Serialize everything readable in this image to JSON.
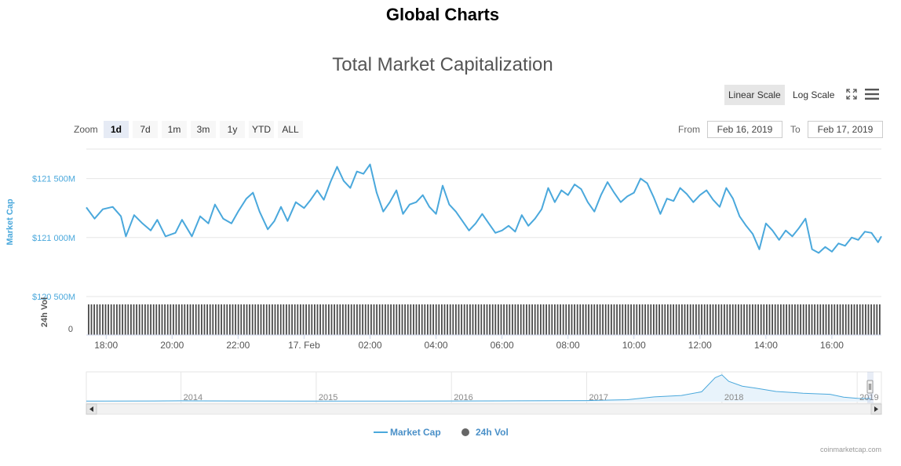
{
  "header": {
    "page_title": "Global Charts",
    "chart_title": "Total Market Capitalization"
  },
  "toolbar": {
    "linear_scale": "Linear Scale",
    "log_scale": "Log Scale",
    "fullscreen_icon": "fullscreen-icon",
    "menu_icon": "hamburger-menu-icon"
  },
  "zoom": {
    "label": "Zoom",
    "buttons": [
      "1d",
      "7d",
      "1m",
      "3m",
      "1y",
      "YTD",
      "ALL"
    ],
    "active": "1d"
  },
  "range": {
    "from_label": "From",
    "from_value": "Feb 16, 2019",
    "to_label": "To",
    "to_value": "Feb 17, 2019"
  },
  "credit": "coinmarketcap.com",
  "chart_data": {
    "type": "line",
    "y_axis": {
      "label": "Market Cap",
      "ticks": [
        {
          "value": 121500,
          "label": "$121 500M"
        },
        {
          "value": 121000,
          "label": "$121 000M"
        },
        {
          "value": 120500,
          "label": "$120 500M"
        }
      ],
      "range_millions": [
        120500,
        121750
      ]
    },
    "vol_axis": {
      "label": "24h Vol",
      "ticks": [
        {
          "value": 0,
          "label": "0"
        }
      ]
    },
    "x_axis": {
      "ticks": [
        "18:00",
        "20:00",
        "22:00",
        "17. Feb",
        "02:00",
        "04:00",
        "06:00",
        "08:00",
        "10:00",
        "12:00",
        "14:00",
        "16:00"
      ],
      "range_hours": [
        17.4,
        41.5
      ],
      "first_tick_hour": 18
    },
    "series": [
      {
        "name": "Market Cap",
        "color": "#4aa8dc",
        "unit": "millions USD",
        "points": [
          [
            17.4,
            121255
          ],
          [
            17.65,
            121160
          ],
          [
            17.9,
            121240
          ],
          [
            18.2,
            121260
          ],
          [
            18.45,
            121180
          ],
          [
            18.6,
            121010
          ],
          [
            18.85,
            121190
          ],
          [
            19.1,
            121120
          ],
          [
            19.35,
            121060
          ],
          [
            19.55,
            121150
          ],
          [
            19.8,
            121010
          ],
          [
            20.1,
            121040
          ],
          [
            20.3,
            121150
          ],
          [
            20.6,
            121010
          ],
          [
            20.85,
            121180
          ],
          [
            21.1,
            121120
          ],
          [
            21.3,
            121280
          ],
          [
            21.55,
            121160
          ],
          [
            21.8,
            121120
          ],
          [
            22.0,
            121220
          ],
          [
            22.25,
            121330
          ],
          [
            22.45,
            121380
          ],
          [
            22.65,
            121220
          ],
          [
            22.9,
            121070
          ],
          [
            23.1,
            121140
          ],
          [
            23.3,
            121260
          ],
          [
            23.5,
            121140
          ],
          [
            23.75,
            121300
          ],
          [
            24.0,
            121250
          ],
          [
            24.2,
            121320
          ],
          [
            24.4,
            121400
          ],
          [
            24.6,
            121320
          ],
          [
            24.8,
            121470
          ],
          [
            25.0,
            121600
          ],
          [
            25.2,
            121480
          ],
          [
            25.4,
            121420
          ],
          [
            25.6,
            121560
          ],
          [
            25.8,
            121540
          ],
          [
            26.0,
            121620
          ],
          [
            26.2,
            121380
          ],
          [
            26.4,
            121220
          ],
          [
            26.6,
            121300
          ],
          [
            26.8,
            121400
          ],
          [
            27.0,
            121200
          ],
          [
            27.2,
            121280
          ],
          [
            27.4,
            121300
          ],
          [
            27.6,
            121360
          ],
          [
            27.8,
            121260
          ],
          [
            28.0,
            121200
          ],
          [
            28.2,
            121440
          ],
          [
            28.4,
            121280
          ],
          [
            28.6,
            121220
          ],
          [
            28.8,
            121140
          ],
          [
            29.0,
            121060
          ],
          [
            29.2,
            121120
          ],
          [
            29.4,
            121200
          ],
          [
            29.6,
            121120
          ],
          [
            29.8,
            121040
          ],
          [
            30.0,
            121060
          ],
          [
            30.2,
            121100
          ],
          [
            30.4,
            121050
          ],
          [
            30.6,
            121190
          ],
          [
            30.8,
            121100
          ],
          [
            31.0,
            121160
          ],
          [
            31.2,
            121240
          ],
          [
            31.4,
            121420
          ],
          [
            31.6,
            121300
          ],
          [
            31.8,
            121400
          ],
          [
            32.0,
            121360
          ],
          [
            32.2,
            121450
          ],
          [
            32.4,
            121410
          ],
          [
            32.6,
            121300
          ],
          [
            32.8,
            121220
          ],
          [
            33.0,
            121360
          ],
          [
            33.2,
            121470
          ],
          [
            33.4,
            121380
          ],
          [
            33.6,
            121300
          ],
          [
            33.8,
            121350
          ],
          [
            34.0,
            121380
          ],
          [
            34.2,
            121500
          ],
          [
            34.4,
            121460
          ],
          [
            34.6,
            121340
          ],
          [
            34.8,
            121200
          ],
          [
            35.0,
            121330
          ],
          [
            35.2,
            121310
          ],
          [
            35.4,
            121420
          ],
          [
            35.6,
            121370
          ],
          [
            35.8,
            121300
          ],
          [
            36.0,
            121360
          ],
          [
            36.2,
            121400
          ],
          [
            36.4,
            121320
          ],
          [
            36.6,
            121260
          ],
          [
            36.8,
            121420
          ],
          [
            37.0,
            121330
          ],
          [
            37.2,
            121180
          ],
          [
            37.4,
            121100
          ],
          [
            37.6,
            121030
          ],
          [
            37.8,
            120900
          ],
          [
            38.0,
            121120
          ],
          [
            38.2,
            121060
          ],
          [
            38.4,
            120980
          ],
          [
            38.6,
            121060
          ],
          [
            38.8,
            121010
          ],
          [
            39.0,
            121080
          ],
          [
            39.2,
            121160
          ],
          [
            39.4,
            120900
          ],
          [
            39.6,
            120870
          ],
          [
            39.8,
            120920
          ],
          [
            40.0,
            120880
          ],
          [
            40.2,
            120950
          ],
          [
            40.4,
            120930
          ],
          [
            40.6,
            121000
          ],
          [
            40.8,
            120980
          ],
          [
            41.0,
            121050
          ],
          [
            41.2,
            121040
          ],
          [
            41.4,
            120960
          ],
          [
            41.5,
            121010
          ]
        ]
      },
      {
        "name": "24h Vol",
        "color": "#444444",
        "unit": "bars"
      }
    ],
    "navigator": {
      "ticks": [
        "2014",
        "2015",
        "2016",
        "2017",
        "2018",
        "2019"
      ],
      "points": [
        [
          2013.3,
          0.02
        ],
        [
          2013.8,
          0.025
        ],
        [
          2014.0,
          0.03
        ],
        [
          2014.5,
          0.025
        ],
        [
          2015.0,
          0.02
        ],
        [
          2015.5,
          0.02
        ],
        [
          2016.0,
          0.025
        ],
        [
          2016.5,
          0.03
        ],
        [
          2017.0,
          0.04
        ],
        [
          2017.3,
          0.07
        ],
        [
          2017.5,
          0.17
        ],
        [
          2017.7,
          0.22
        ],
        [
          2017.85,
          0.35
        ],
        [
          2017.95,
          0.85
        ],
        [
          2018.0,
          0.95
        ],
        [
          2018.05,
          0.72
        ],
        [
          2018.15,
          0.55
        ],
        [
          2018.25,
          0.48
        ],
        [
          2018.4,
          0.36
        ],
        [
          2018.6,
          0.3
        ],
        [
          2018.8,
          0.26
        ],
        [
          2018.9,
          0.16
        ],
        [
          2019.0,
          0.12
        ],
        [
          2019.1,
          0.11
        ]
      ]
    },
    "legend": {
      "position": "bottom-center",
      "entries": [
        "Market Cap",
        "24h Vol"
      ]
    }
  }
}
